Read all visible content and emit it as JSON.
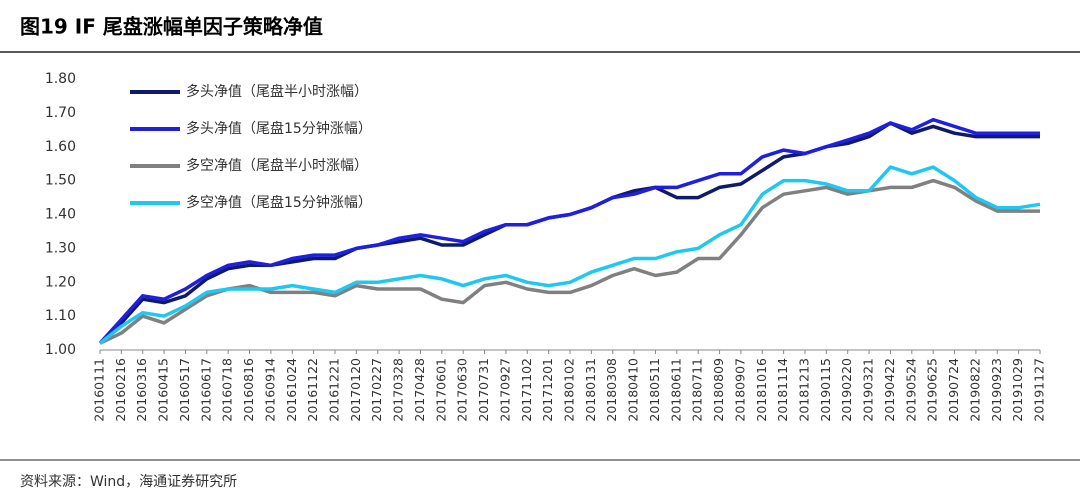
{
  "chart_data": {
    "type": "line",
    "title": "图19 IF 尾盘涨幅单因子策略净值",
    "source": "资料来源：Wind，海通证券研究所",
    "categories": [
      "20160111",
      "20160216",
      "20160316",
      "20160415",
      "20160517",
      "20160617",
      "20160718",
      "20160816",
      "20160914",
      "20161024",
      "20161122",
      "20161221",
      "20170120",
      "20170227",
      "20170328",
      "20170428",
      "20170601",
      "20170630",
      "20170731",
      "20170927",
      "20171102",
      "20171201",
      "20180102",
      "20180131",
      "20180308",
      "20180410",
      "20180511",
      "20180611",
      "20180711",
      "20180809",
      "20180907",
      "20181016",
      "20181114",
      "20181213",
      "20190115",
      "20190220",
      "20190321",
      "20190422",
      "20190524",
      "20190625",
      "20190724",
      "20190822",
      "20190923",
      "20191029",
      "20191127"
    ],
    "series": [
      {
        "name": "多头净值（尾盘半小时涨幅）",
        "color": "#0d1a6e",
        "values": [
          1.02,
          1.08,
          1.15,
          1.14,
          1.16,
          1.21,
          1.24,
          1.25,
          1.25,
          1.26,
          1.27,
          1.27,
          1.3,
          1.31,
          1.32,
          1.33,
          1.31,
          1.31,
          1.34,
          1.37,
          1.37,
          1.39,
          1.4,
          1.42,
          1.45,
          1.47,
          1.48,
          1.45,
          1.45,
          1.48,
          1.49,
          1.53,
          1.57,
          1.58,
          1.6,
          1.61,
          1.63,
          1.67,
          1.64,
          1.66,
          1.64,
          1.63,
          1.63,
          1.63,
          1.63
        ]
      },
      {
        "name": "多头净值（尾盘15分钟涨幅）",
        "color": "#1f1fe0",
        "values": [
          1.02,
          1.09,
          1.16,
          1.15,
          1.18,
          1.22,
          1.25,
          1.26,
          1.25,
          1.27,
          1.28,
          1.28,
          1.3,
          1.31,
          1.33,
          1.34,
          1.33,
          1.32,
          1.35,
          1.37,
          1.37,
          1.39,
          1.4,
          1.42,
          1.45,
          1.46,
          1.48,
          1.48,
          1.5,
          1.52,
          1.52,
          1.57,
          1.59,
          1.58,
          1.6,
          1.62,
          1.64,
          1.67,
          1.65,
          1.68,
          1.66,
          1.64,
          1.64,
          1.64,
          1.64
        ]
      },
      {
        "name": "多空净值（尾盘半小时涨幅）",
        "color": "#808080",
        "values": [
          1.02,
          1.05,
          1.1,
          1.08,
          1.12,
          1.16,
          1.18,
          1.19,
          1.17,
          1.17,
          1.17,
          1.16,
          1.19,
          1.18,
          1.18,
          1.18,
          1.15,
          1.14,
          1.19,
          1.2,
          1.18,
          1.17,
          1.17,
          1.19,
          1.22,
          1.24,
          1.22,
          1.23,
          1.27,
          1.27,
          1.34,
          1.42,
          1.46,
          1.47,
          1.48,
          1.46,
          1.47,
          1.48,
          1.48,
          1.5,
          1.48,
          1.44,
          1.41,
          1.41,
          1.41
        ]
      },
      {
        "name": "多空净值（尾盘15分钟涨幅）",
        "color": "#1ec8f0",
        "values": [
          1.02,
          1.07,
          1.11,
          1.1,
          1.13,
          1.17,
          1.18,
          1.18,
          1.18,
          1.19,
          1.18,
          1.17,
          1.2,
          1.2,
          1.21,
          1.22,
          1.21,
          1.19,
          1.21,
          1.22,
          1.2,
          1.19,
          1.2,
          1.23,
          1.25,
          1.27,
          1.27,
          1.29,
          1.3,
          1.34,
          1.37,
          1.46,
          1.5,
          1.5,
          1.49,
          1.47,
          1.47,
          1.54,
          1.52,
          1.54,
          1.5,
          1.45,
          1.42,
          1.42,
          1.43
        ]
      }
    ],
    "ylim": [
      1,
      1.8
    ],
    "yticks": [
      {
        "value": 1,
        "label": "1.00"
      },
      {
        "value": 1.1,
        "label": "1.10"
      },
      {
        "value": 1.2,
        "label": "1.20"
      },
      {
        "value": 1.3,
        "label": "1.30"
      },
      {
        "value": 1.4,
        "label": "1.40"
      },
      {
        "value": 1.5,
        "label": "1.50"
      },
      {
        "value": 1.6,
        "label": "1.60"
      },
      {
        "value": 1.7,
        "label": "1.70"
      },
      {
        "value": 1.8,
        "label": "1.80"
      }
    ],
    "grid": false
  }
}
